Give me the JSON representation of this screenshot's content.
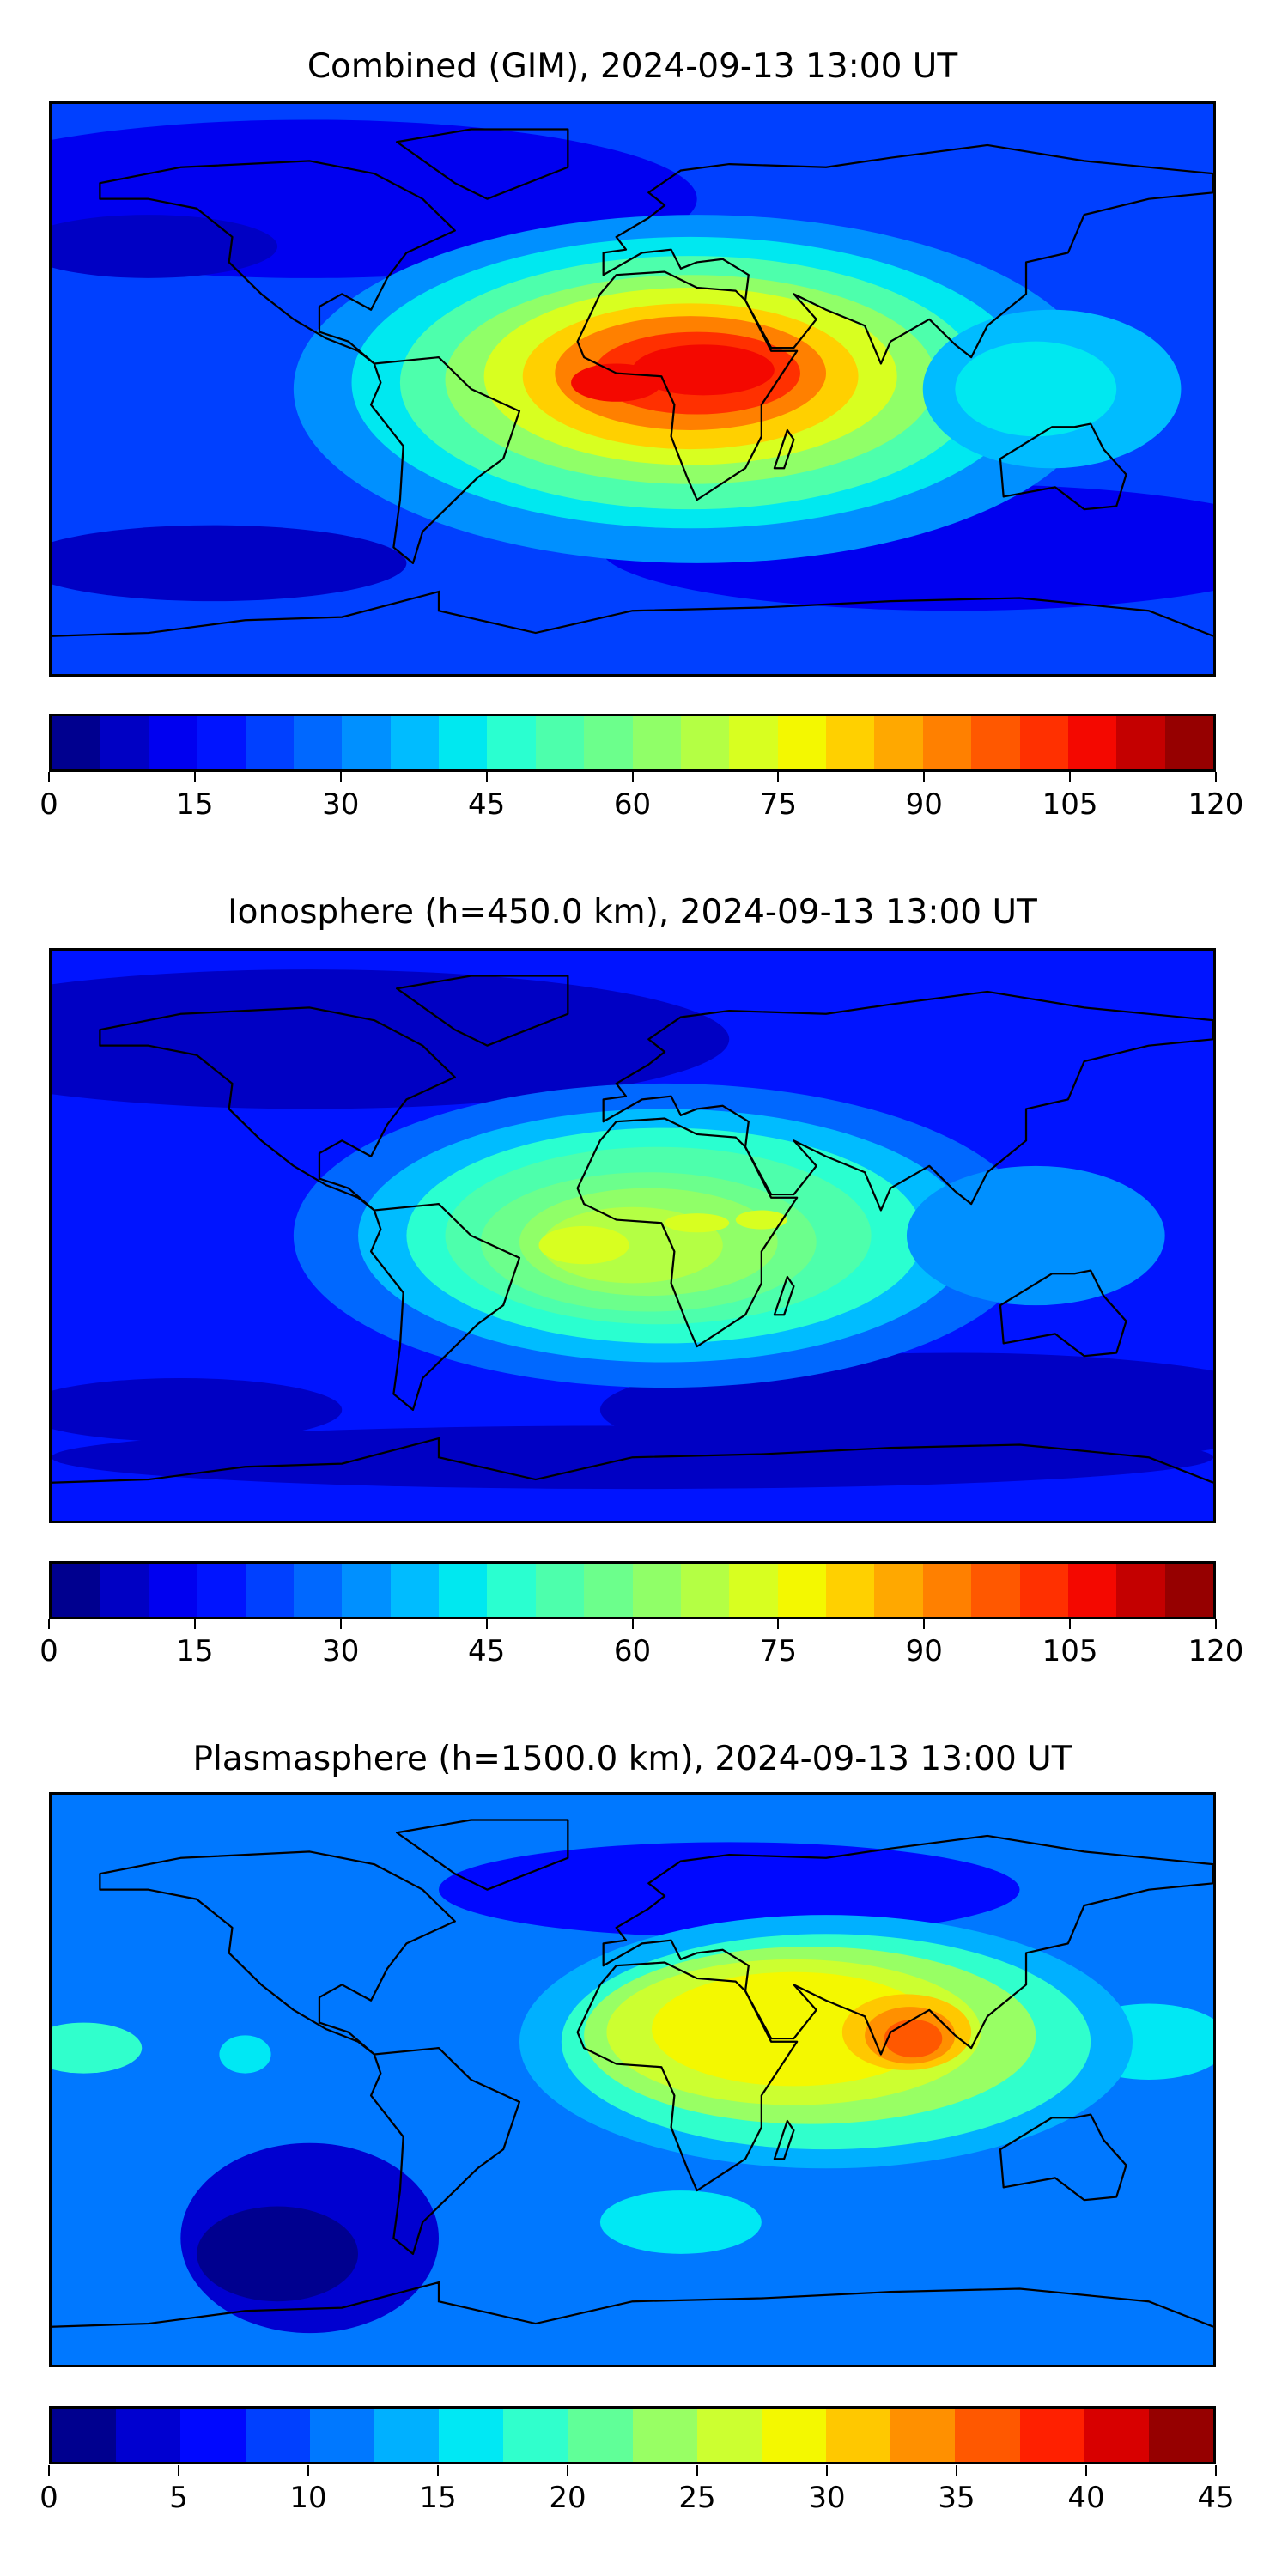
{
  "chart_data": [
    {
      "type": "heatmap",
      "title": "Combined (GIM), 2024-09-13 13:00 UT",
      "xlabel": "",
      "ylabel": "",
      "colorbar": {
        "min": 0,
        "max": 120,
        "step": 5,
        "ticks": [
          0,
          15,
          30,
          45,
          60,
          75,
          90,
          105,
          120
        ]
      },
      "max_region": "equatorial Africa / Atlantic, ~110-120",
      "colors": [
        "#00008f",
        "#0000c4",
        "#0000f0",
        "#0014ff",
        "#0040ff",
        "#0068ff",
        "#0090ff",
        "#00bcff",
        "#00e8f0",
        "#2affd0",
        "#4dffac",
        "#6cff8c",
        "#90ff68",
        "#b4ff44",
        "#d8ff20",
        "#f4f800",
        "#ffd000",
        "#ffa800",
        "#ff8000",
        "#ff5800",
        "#ff3000",
        "#f40800",
        "#c40000",
        "#960000"
      ]
    },
    {
      "type": "heatmap",
      "title": "Ionosphere  (h=450.0 km), 2024-09-13 13:00 UT",
      "xlabel": "",
      "ylabel": "",
      "colorbar": {
        "min": 0,
        "max": 120,
        "step": 5,
        "ticks": [
          0,
          15,
          30,
          45,
          60,
          75,
          90,
          105,
          120
        ]
      },
      "max_region": "South Atlantic / Africa, ~80-85",
      "colors": [
        "#00008f",
        "#0000c4",
        "#0000f0",
        "#0014ff",
        "#0040ff",
        "#0068ff",
        "#0090ff",
        "#00bcff",
        "#00e8f0",
        "#2affd0",
        "#4dffac",
        "#6cff8c",
        "#90ff68",
        "#b4ff44",
        "#d8ff20",
        "#f4f800",
        "#ffd000",
        "#ffa800",
        "#ff8000",
        "#ff5800",
        "#ff3000",
        "#f40800",
        "#c40000",
        "#960000"
      ]
    },
    {
      "type": "heatmap",
      "title": "Plasmasphere (h=1500.0 km), 2024-09-13 13:00 UT",
      "xlabel": "",
      "ylabel": "",
      "colorbar": {
        "min": 0,
        "max": 45,
        "step": 2.5,
        "ticks": [
          0,
          5,
          10,
          15,
          20,
          25,
          30,
          35,
          40,
          45
        ]
      },
      "max_region": "Bay of Bengal / India, ~37-40",
      "colors": [
        "#00008f",
        "#0000d0",
        "#0008ff",
        "#0040ff",
        "#0078ff",
        "#00b0ff",
        "#00e8f4",
        "#30ffcc",
        "#60ff98",
        "#98ff64",
        "#ccff30",
        "#f4f800",
        "#ffc800",
        "#ff9000",
        "#ff5800",
        "#ff2000",
        "#d80000",
        "#960000"
      ]
    }
  ]
}
